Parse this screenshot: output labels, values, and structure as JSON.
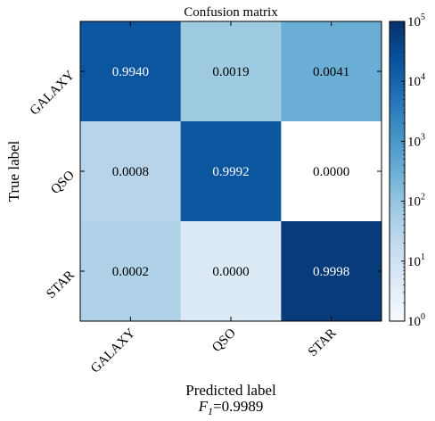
{
  "chart_data": {
    "type": "heatmap",
    "title": "Confusion matrix",
    "xlabel": "Predicted label",
    "ylabel": "True label",
    "footer": {
      "prefix": "F",
      "subscript": "1",
      "suffix": "=0.9989"
    },
    "x_categories": [
      "GALAXY",
      "QSO",
      "STAR"
    ],
    "y_categories": [
      "GALAXY",
      "QSO",
      "STAR"
    ],
    "values": [
      [
        "0.9940",
        "0.0019",
        "0.0041"
      ],
      [
        "0.0008",
        "0.9992",
        "0.0000"
      ],
      [
        "0.0002",
        "0.0000",
        "0.9998"
      ]
    ],
    "cell_colors": [
      [
        "#0c56a0",
        "#9ecae1",
        "#6aaed6"
      ],
      [
        "#b7d4ea",
        "#0c56a0",
        "#ffffff"
      ],
      [
        "#b0d2e8",
        "#dceaf6",
        "#083b7a"
      ]
    ],
    "text_colors": [
      [
        "#ffffff",
        "#000000",
        "#000000"
      ],
      [
        "#000000",
        "#ffffff",
        "#000000"
      ],
      [
        "#000000",
        "#000000",
        "#ffffff"
      ]
    ],
    "colorbar": {
      "scale": "log",
      "ticks": [
        {
          "base": "10",
          "exp": "0"
        },
        {
          "base": "10",
          "exp": "1"
        },
        {
          "base": "10",
          "exp": "2"
        },
        {
          "base": "10",
          "exp": "3"
        },
        {
          "base": "10",
          "exp": "4"
        },
        {
          "base": "10",
          "exp": "5"
        }
      ],
      "colors": [
        "#f7fbff",
        "#deebf7",
        "#c6dbef",
        "#9ecae1",
        "#6baed6",
        "#4292c6",
        "#2171b5",
        "#08519c",
        "#08306b"
      ]
    }
  }
}
